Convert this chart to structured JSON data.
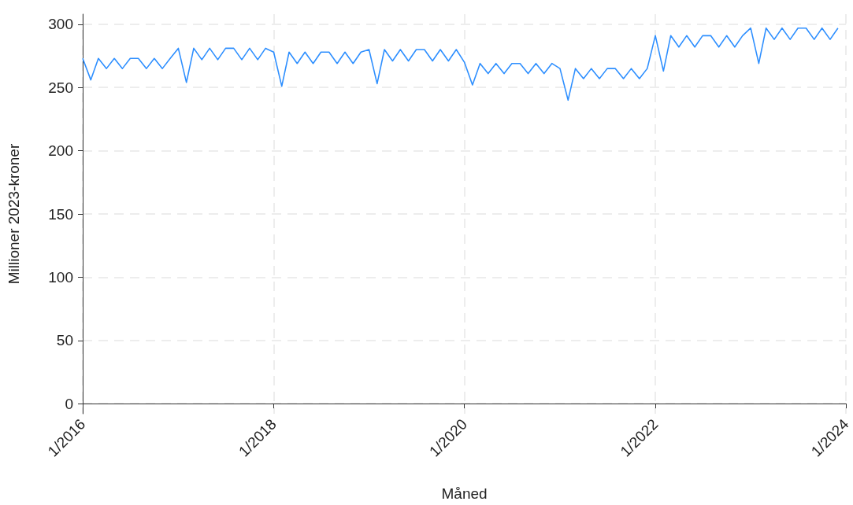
{
  "chart_data": {
    "type": "line",
    "xlabel": "Måned",
    "ylabel": "Millioner 2023-kroner",
    "x": [
      "2016-01",
      "2016-02",
      "2016-03",
      "2016-04",
      "2016-05",
      "2016-06",
      "2016-07",
      "2016-08",
      "2016-09",
      "2016-10",
      "2016-11",
      "2016-12",
      "2017-01",
      "2017-02",
      "2017-03",
      "2017-04",
      "2017-05",
      "2017-06",
      "2017-07",
      "2017-08",
      "2017-09",
      "2017-10",
      "2017-11",
      "2017-12",
      "2018-01",
      "2018-02",
      "2018-03",
      "2018-04",
      "2018-05",
      "2018-06",
      "2018-07",
      "2018-08",
      "2018-09",
      "2018-10",
      "2018-11",
      "2018-12",
      "2019-01",
      "2019-02",
      "2019-03",
      "2019-04",
      "2019-05",
      "2019-06",
      "2019-07",
      "2019-08",
      "2019-09",
      "2019-10",
      "2019-11",
      "2019-12",
      "2020-01",
      "2020-02",
      "2020-03",
      "2020-04",
      "2020-05",
      "2020-06",
      "2020-07",
      "2020-08",
      "2020-09",
      "2020-10",
      "2020-11",
      "2020-12",
      "2021-01",
      "2021-02",
      "2021-03",
      "2021-04",
      "2021-05",
      "2021-06",
      "2021-07",
      "2021-08",
      "2021-09",
      "2021-10",
      "2021-11",
      "2021-12",
      "2022-01",
      "2022-02",
      "2022-03",
      "2022-04",
      "2022-05",
      "2022-06",
      "2022-07",
      "2022-08",
      "2022-09",
      "2022-10",
      "2022-11",
      "2022-12",
      "2023-01",
      "2023-02",
      "2023-03",
      "2023-04",
      "2023-05",
      "2023-06",
      "2023-07",
      "2023-08",
      "2023-09",
      "2023-10",
      "2023-11",
      "2023-12"
    ],
    "series": [
      {
        "color": "#2e8fff",
        "values": [
          273,
          256,
          273,
          265,
          273,
          265,
          273,
          273,
          265,
          273,
          265,
          273,
          281,
          254,
          281,
          272,
          281,
          272,
          281,
          281,
          272,
          281,
          272,
          281,
          278,
          251,
          278,
          269,
          278,
          269,
          278,
          278,
          269,
          278,
          269,
          278,
          280,
          253,
          280,
          271,
          280,
          271,
          280,
          280,
          271,
          280,
          271,
          280,
          270,
          252,
          269,
          261,
          269,
          261,
          269,
          269,
          261,
          269,
          261,
          269,
          265,
          240,
          265,
          257,
          265,
          257,
          265,
          265,
          257,
          265,
          257,
          265,
          291,
          263,
          291,
          282,
          291,
          282,
          291,
          291,
          282,
          291,
          282,
          291,
          297,
          269,
          297,
          288,
          297,
          288,
          297,
          297,
          288,
          297,
          288,
          297
        ]
      }
    ],
    "xlim": [
      "2016-01",
      "2024-01"
    ],
    "xticks": [
      {
        "value": "2016-01",
        "label": "1/2016"
      },
      {
        "value": "2018-01",
        "label": "1/2018"
      },
      {
        "value": "2020-01",
        "label": "1/2020"
      },
      {
        "value": "2022-01",
        "label": "1/2022"
      },
      {
        "value": "2024-01",
        "label": "1/2024"
      }
    ],
    "ylim": [
      -8,
      308
    ],
    "yticks": [
      0,
      50,
      100,
      150,
      200,
      250,
      300
    ],
    "grid": true,
    "marker": "none",
    "line_style": "solid"
  }
}
